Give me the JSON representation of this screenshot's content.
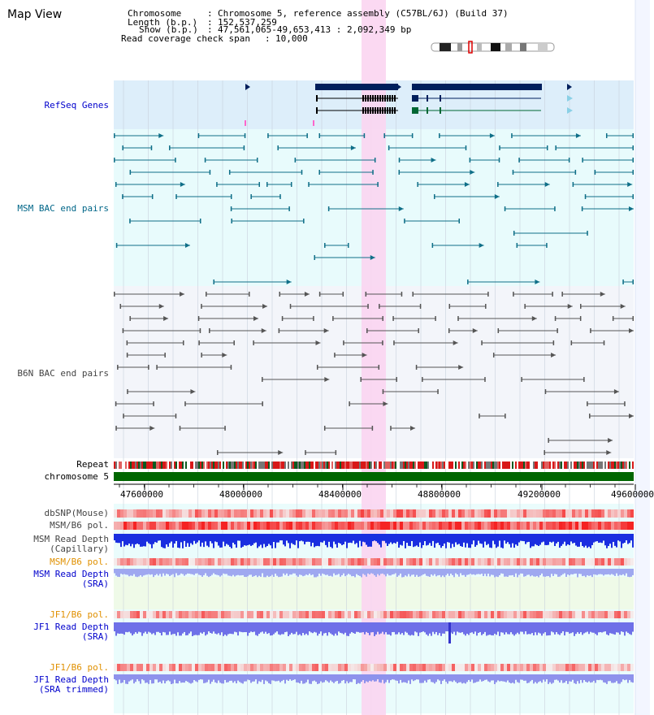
{
  "title": "Map View",
  "header": {
    "chromosome_key": "Chromosome",
    "chromosome_value": "Chromosome 5, reference assembly (C57BL/6J) (Build 37)",
    "length_key": "Length (b.p.)",
    "length_value": "152,537,259",
    "show_key": "Show (b.p.)",
    "show_value": "47,561,065-49,653,413 : 2,092,349 bp",
    "coverage_key": "Read coverage check span",
    "coverage_value": "10,000",
    "sep": ":"
  },
  "tracks": {
    "refseq": "RefSeq Genes",
    "msm_bac": "MSM BAC end pairs",
    "b6n_bac": "B6N BAC end pairs",
    "repeat": "Repeat",
    "chromosome": "chromosome 5",
    "dbsnp": "dbSNP(Mouse)",
    "msm_b6_pol_1": "MSM/B6 pol.",
    "msm_read_depth_cap_1": "MSM Read Depth",
    "msm_read_depth_cap_2": "(Capillary)",
    "msm_b6_pol_2": "MSM/B6 pol.",
    "msm_read_depth_sra_1": "MSM Read Depth",
    "msm_read_depth_sra_2": "(SRA)",
    "jf1_b6_pol_1": "JF1/B6 pol.",
    "jf1_read_depth_sra_1": "JF1 Read Depth",
    "jf1_read_depth_sra_2": "(SRA)",
    "jf1_b6_pol_2": "JF1/B6 pol.",
    "jf1_read_depth_trim_1": "JF1 Read Depth",
    "jf1_read_depth_trim_2": "(SRA trimmed)"
  },
  "axis": {
    "ticks": [
      "47600000",
      "48000000",
      "48400000",
      "48800000",
      "49200000",
      "49600000"
    ]
  },
  "colors": {
    "label_blue": "#0000cc",
    "label_teal": "#006688",
    "label_gray": "#444444",
    "label_orange": "#e09000",
    "highlight": "#f9d4f0",
    "gene_navy": "#001f5c",
    "chromosome_green": "#006600"
  }
}
